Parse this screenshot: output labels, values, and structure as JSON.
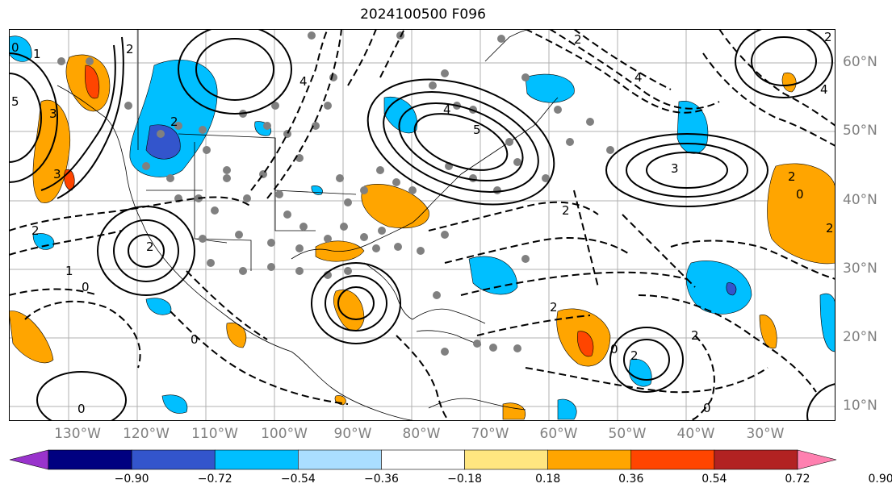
{
  "title": "2024100500 F096",
  "lat_labels": [
    "60°N",
    "50°N",
    "40°N",
    "30°N",
    "20°N",
    "10°N"
  ],
  "lon_labels": [
    "130°W",
    "120°W",
    "110°W",
    "100°W",
    "90°W",
    "80°W",
    "70°W",
    "60°W",
    "50°W",
    "40°W",
    "30°W"
  ],
  "colorbar": {
    "colors": [
      "#9933cc",
      "#000080",
      "#3355cc",
      "#00bfff",
      "#aadeff",
      "#ffffff",
      "#ffe680",
      "#ffa500",
      "#ff4500",
      "#b22222",
      "#ff80b0"
    ],
    "ticks": [
      "−0.90",
      "−0.72",
      "−0.54",
      "−0.36",
      "−0.18",
      "0.18",
      "0.36",
      "0.54",
      "0.72",
      "0.90"
    ]
  },
  "contour_labels": [
    "0",
    "1",
    "2",
    "4",
    "3",
    "5",
    "2",
    "5",
    "2",
    "4",
    "2",
    "3",
    "0",
    "2",
    "3",
    "2",
    "0",
    "1",
    "0",
    "2",
    "0",
    "0",
    "2",
    "2",
    "2",
    "4",
    "2",
    "0",
    "2",
    "4"
  ]
}
